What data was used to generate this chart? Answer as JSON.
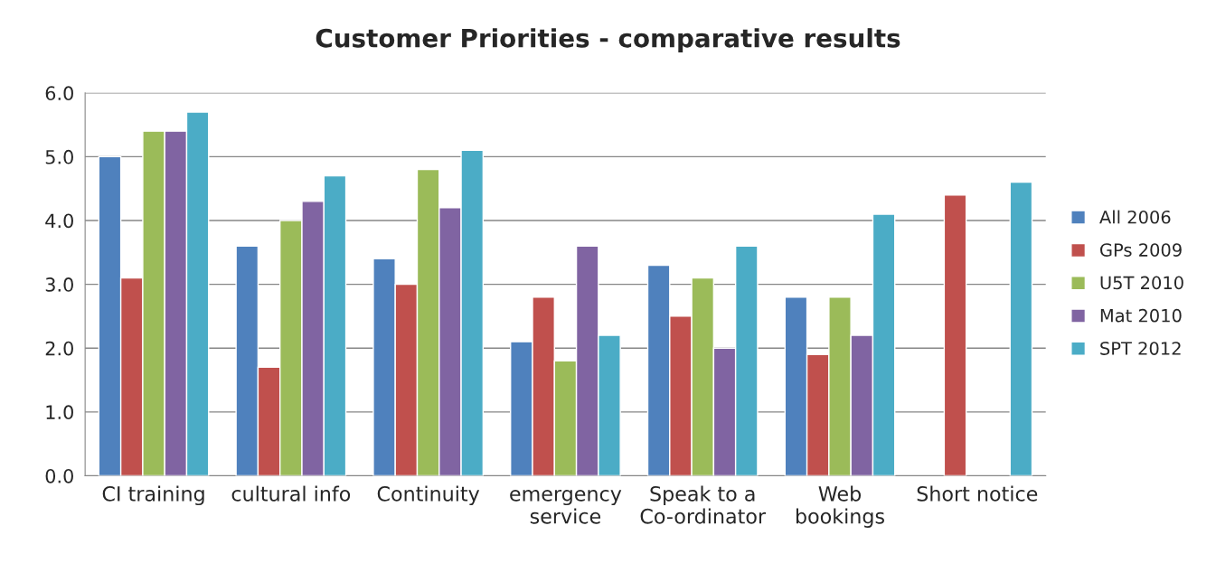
{
  "chart_data": {
    "type": "bar",
    "title": "Customer Priorities - comparative results",
    "categories": [
      "CI training",
      "cultural info",
      "Continuity",
      "emergency\nservice",
      "Speak to a\nCo-ordinator",
      "Web\nbookings",
      "Short notice"
    ],
    "series": [
      {
        "name": "All 2006",
        "color": "#4f81bd",
        "values": [
          5.0,
          3.6,
          3.4,
          2.1,
          3.3,
          2.8,
          null
        ]
      },
      {
        "name": "GPs 2009",
        "color": "#c0504d",
        "values": [
          3.1,
          1.7,
          3.0,
          2.8,
          2.5,
          1.9,
          4.4
        ]
      },
      {
        "name": "U5T 2010",
        "color": "#9bbb59",
        "values": [
          5.4,
          4.0,
          4.8,
          1.8,
          3.1,
          2.8,
          null
        ]
      },
      {
        "name": "Mat 2010",
        "color": "#8064a2",
        "values": [
          5.4,
          4.3,
          4.2,
          3.6,
          2.0,
          2.2,
          null
        ]
      },
      {
        "name": "SPT 2012",
        "color": "#4bacc6",
        "values": [
          5.7,
          4.7,
          5.1,
          2.2,
          3.6,
          4.1,
          4.6
        ]
      }
    ],
    "ylim": [
      0,
      6
    ],
    "yticks": [
      {
        "value": 0,
        "label": "0.0"
      },
      {
        "value": 1,
        "label": "1.0"
      },
      {
        "value": 2,
        "label": "2.0"
      },
      {
        "value": 3,
        "label": "3.0"
      },
      {
        "value": 4,
        "label": "4.0"
      },
      {
        "value": 5,
        "label": "5.0"
      },
      {
        "value": 6,
        "label": "6.0"
      }
    ],
    "grid": "y",
    "legend": "right"
  }
}
